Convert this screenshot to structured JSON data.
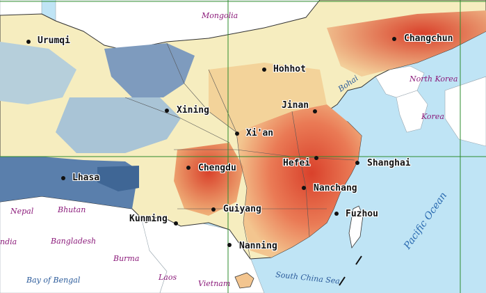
{
  "colors": {
    "sea": "#bfe4f5",
    "foreign_land": "#ffffff",
    "grid": "#2e8b2e",
    "low": "#4f78a8",
    "mid_low": "#a9c4d6",
    "mid": "#f6edbf",
    "mid_high": "#f0b27a",
    "high": "#d9412b"
  },
  "cities": [
    {
      "name": "Urumqi"
    },
    {
      "name": "Changchun"
    },
    {
      "name": "Hohhot"
    },
    {
      "name": "Xining"
    },
    {
      "name": "Jinan"
    },
    {
      "name": "Xi'an"
    },
    {
      "name": "Chengdu"
    },
    {
      "name": "Hefei"
    },
    {
      "name": "Shanghai"
    },
    {
      "name": "Lhasa"
    },
    {
      "name": "Nanchang"
    },
    {
      "name": "Guiyang"
    },
    {
      "name": "Kunming"
    },
    {
      "name": "Fuzhou"
    },
    {
      "name": "Nanning"
    }
  ],
  "countries": [
    "Mongolia",
    "North Korea",
    "Korea",
    "Nepal",
    "Bhutan",
    "ndia",
    "Bangladesh",
    "Burma",
    "Laos",
    "Vietnam"
  ],
  "water": [
    "Bohai",
    "Bay of Bengal",
    "South China Sea"
  ],
  "ocean": "Pacific Ocean"
}
